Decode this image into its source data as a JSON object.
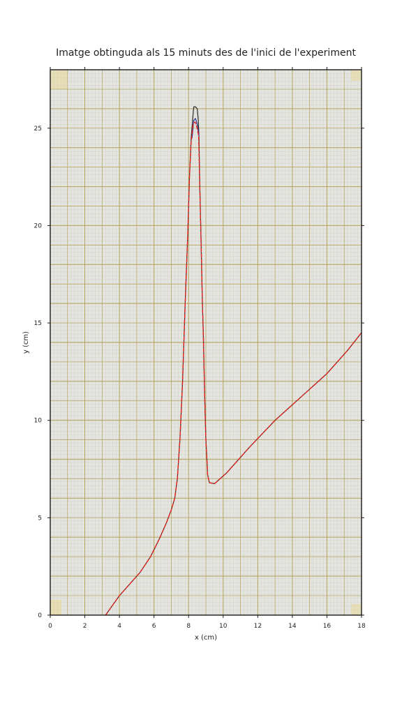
{
  "chart_data": {
    "type": "line",
    "title": "Imatge obtinguda als 15 minuts des de l'inici de l'experiment",
    "xlabel": "x (cm)",
    "ylabel": "y (cm)",
    "xlim": [
      0,
      18
    ],
    "ylim": [
      0,
      28
    ],
    "xticks": [
      0,
      2,
      4,
      6,
      8,
      10,
      12,
      14,
      16,
      18
    ],
    "yticks": [
      0,
      5,
      10,
      15,
      20,
      25
    ],
    "background": "photo of graph paper",
    "series": [
      {
        "color": "#2b2b2b",
        "style": "solid",
        "x": [
          3.2,
          3.6,
          4.0,
          4.6,
          5.2,
          5.8,
          6.3,
          6.7,
          7.0,
          7.2,
          7.35,
          7.5,
          7.65,
          7.8,
          7.95,
          8.05,
          8.15,
          8.25,
          8.3,
          8.4,
          8.5,
          8.55,
          8.6,
          8.65,
          8.7,
          8.75,
          8.8,
          8.85,
          8.9,
          8.95,
          9.0,
          9.05,
          9.1,
          9.2,
          9.5,
          10.2,
          11.5,
          13.0,
          14.5,
          16.0,
          17.2,
          18.0
        ],
        "y": [
          0.0,
          0.5,
          1.0,
          1.6,
          2.2,
          3.0,
          3.9,
          4.7,
          5.4,
          6.0,
          7.0,
          9.0,
          12.0,
          16.0,
          19.5,
          22.5,
          24.5,
          25.6,
          26.1,
          26.1,
          26.0,
          25.5,
          24.6,
          22.0,
          20.0,
          18.0,
          16.0,
          14.5,
          12.5,
          10.5,
          9.0,
          8.2,
          7.2,
          6.8,
          6.75,
          7.3,
          8.6,
          10.0,
          11.2,
          12.4,
          13.6,
          14.5
        ]
      },
      {
        "color": "#2a3d9a",
        "style": "solid",
        "x": [
          8.2,
          8.3,
          8.4,
          8.5,
          8.6
        ],
        "y": [
          24.5,
          25.4,
          25.5,
          25.2,
          24.6
        ]
      },
      {
        "color": "#e8211c",
        "style": "dashed",
        "x": [
          3.2,
          3.6,
          4.0,
          4.6,
          5.2,
          5.8,
          6.3,
          6.7,
          7.0,
          7.2,
          7.35,
          7.5,
          7.65,
          7.8,
          7.95,
          8.05,
          8.15,
          8.25,
          8.32,
          8.4,
          8.5,
          8.58,
          8.65,
          8.7,
          8.75,
          8.8,
          8.85,
          8.9,
          8.95,
          9.0,
          9.05,
          9.1,
          9.2,
          9.5,
          10.2,
          11.5,
          13.0,
          14.5,
          16.0,
          17.2,
          18.0
        ],
        "y": [
          0.0,
          0.5,
          1.0,
          1.6,
          2.2,
          3.0,
          3.9,
          4.7,
          5.4,
          6.0,
          7.0,
          9.0,
          12.0,
          16.0,
          19.5,
          22.5,
          24.3,
          25.1,
          25.3,
          25.3,
          25.0,
          24.6,
          22.0,
          20.0,
          18.0,
          16.0,
          14.5,
          12.5,
          10.5,
          9.0,
          8.2,
          7.2,
          6.8,
          6.75,
          7.3,
          8.6,
          10.0,
          11.2,
          12.4,
          13.6,
          14.5
        ]
      }
    ]
  }
}
